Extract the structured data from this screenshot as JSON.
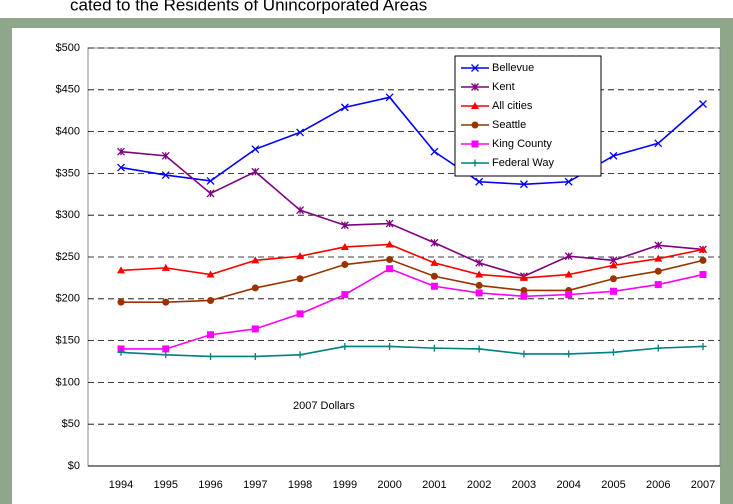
{
  "chart_data": {
    "type": "line",
    "title": "cated to the Residents of Unincorporated Areas",
    "annotation": "2007 Dollars",
    "categories": [
      "1994",
      "1995",
      "1996",
      "1997",
      "1998",
      "1999",
      "2000",
      "2001",
      "2002",
      "2003",
      "2004",
      "2005",
      "2006",
      "2007"
    ],
    "ylim": [
      0,
      500
    ],
    "yticks": [
      {
        "value": 0,
        "label": "$0"
      },
      {
        "value": 50,
        "label": "$50"
      },
      {
        "value": 100,
        "label": "$100"
      },
      {
        "value": 150,
        "label": "$150"
      },
      {
        "value": 200,
        "label": "$200"
      },
      {
        "value": 250,
        "label": "$250"
      },
      {
        "value": 300,
        "label": "$300"
      },
      {
        "value": 350,
        "label": "$350"
      },
      {
        "value": 400,
        "label": "$400"
      },
      {
        "value": 450,
        "label": "$450"
      },
      {
        "value": 500,
        "label": "$500"
      }
    ],
    "grid": true,
    "legend": "upper right",
    "series": [
      {
        "name": "Bellevue",
        "color": "#0000ff",
        "marker": "x",
        "values": [
          357,
          348,
          341,
          379,
          399,
          429,
          441,
          376,
          340,
          337,
          340,
          371,
          386,
          433
        ]
      },
      {
        "name": "Kent",
        "color": "#800080",
        "marker": "star",
        "values": [
          376,
          371,
          326,
          352,
          306,
          288,
          290,
          267,
          243,
          227,
          251,
          246,
          264,
          259
        ]
      },
      {
        "name": "All cities",
        "color": "#ff0000",
        "marker": "triangle",
        "values": [
          234,
          237,
          229,
          246,
          251,
          262,
          265,
          243,
          229,
          225,
          229,
          240,
          248,
          259
        ]
      },
      {
        "name": "Seattle",
        "color": "#993300",
        "marker": "circle",
        "values": [
          196,
          196,
          198,
          213,
          224,
          241,
          247,
          227,
          216,
          210,
          210,
          224,
          233,
          246
        ]
      },
      {
        "name": "King County",
        "color": "#ff00ff",
        "marker": "square",
        "values": [
          140,
          140,
          157,
          164,
          182,
          205,
          236,
          215,
          207,
          203,
          205,
          209,
          217,
          229
        ]
      },
      {
        "name": "Federal Way",
        "color": "#008080",
        "marker": "plus",
        "values": [
          136,
          133,
          131,
          131,
          133,
          143,
          143,
          141,
          140,
          134,
          134,
          136,
          141,
          143
        ]
      }
    ]
  }
}
